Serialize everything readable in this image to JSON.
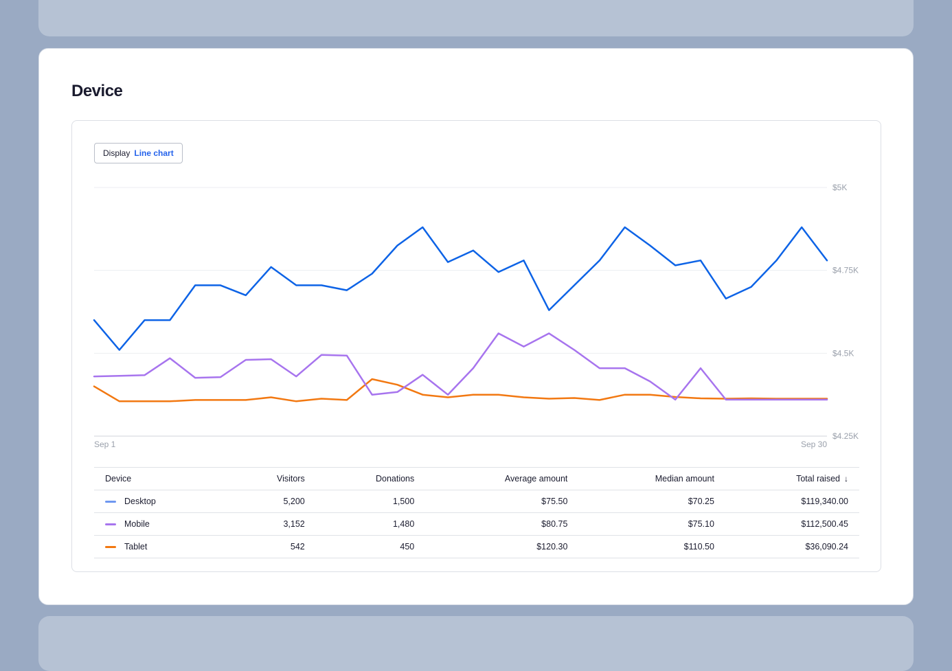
{
  "page": {
    "title": "Device"
  },
  "display_control": {
    "label": "Display",
    "value": "Line chart"
  },
  "colors": {
    "Desktop": "#0d63e6",
    "Mobile": "#a774ee",
    "Tablet": "#f27811"
  },
  "chart_data": {
    "type": "line",
    "x_labels": {
      "start": "Sep 1",
      "end": "Sep 30"
    },
    "yticks": [
      "$5K",
      "$4.75K",
      "$4.5K",
      "$4.25K"
    ],
    "ytick_values": [
      5000,
      4750,
      4500,
      4250
    ],
    "ylim": [
      4250,
      5000
    ],
    "grid": true,
    "x": [
      1,
      2,
      3,
      4,
      5,
      6,
      7,
      8,
      9,
      10,
      11,
      12,
      13,
      14,
      15,
      16,
      17,
      18,
      19,
      20,
      21,
      22,
      23,
      24,
      25,
      26,
      27,
      28,
      29,
      30
    ],
    "series": [
      {
        "name": "Desktop",
        "values": [
          4600,
          4510,
          4600,
          4600,
          4705,
          4705,
          4675,
          4760,
          4705,
          4705,
          4690,
          4740,
          4825,
          4880,
          4775,
          4810,
          4745,
          4780,
          4630,
          4705,
          4780,
          4880,
          4825,
          4765,
          4780,
          4665,
          4700,
          4780,
          4880,
          4780
        ]
      },
      {
        "name": "Mobile",
        "values": [
          4430,
          4432,
          4434,
          4485,
          4426,
          4428,
          4480,
          4482,
          4430,
          4495,
          4493,
          4375,
          4383,
          4435,
          4375,
          4455,
          4560,
          4520,
          4560,
          4510,
          4455,
          4455,
          4415,
          4360,
          4455,
          4360,
          4360,
          4360,
          4360,
          4360
        ]
      },
      {
        "name": "Tablet",
        "values": [
          4400,
          4355,
          4355,
          4355,
          4359,
          4359,
          4359,
          4367,
          4355,
          4363,
          4359,
          4422,
          4405,
          4375,
          4367,
          4375,
          4375,
          4367,
          4363,
          4365,
          4359,
          4375,
          4375,
          4368,
          4364,
          4363,
          4364,
          4363,
          4363,
          4363
        ]
      }
    ]
  },
  "table": {
    "headers": [
      "Device",
      "Visitors",
      "Donations",
      "Average amount",
      "Median amount",
      "Total raised"
    ],
    "sort_icon": "arrow-down-icon",
    "sort_glyph": "↓",
    "rows": [
      {
        "device": "Desktop",
        "visitors": "5,200",
        "donations": "1,500",
        "average": "$75.50",
        "median": "$70.25",
        "total": "$119,340.00"
      },
      {
        "device": "Mobile",
        "visitors": "3,152",
        "donations": "1,480",
        "average": "$80.75",
        "median": "$75.10",
        "total": "$112,500.45"
      },
      {
        "device": "Tablet",
        "visitors": "542",
        "donations": "450",
        "average": "$120.30",
        "median": "$110.50",
        "total": "$36,090.24"
      }
    ]
  }
}
